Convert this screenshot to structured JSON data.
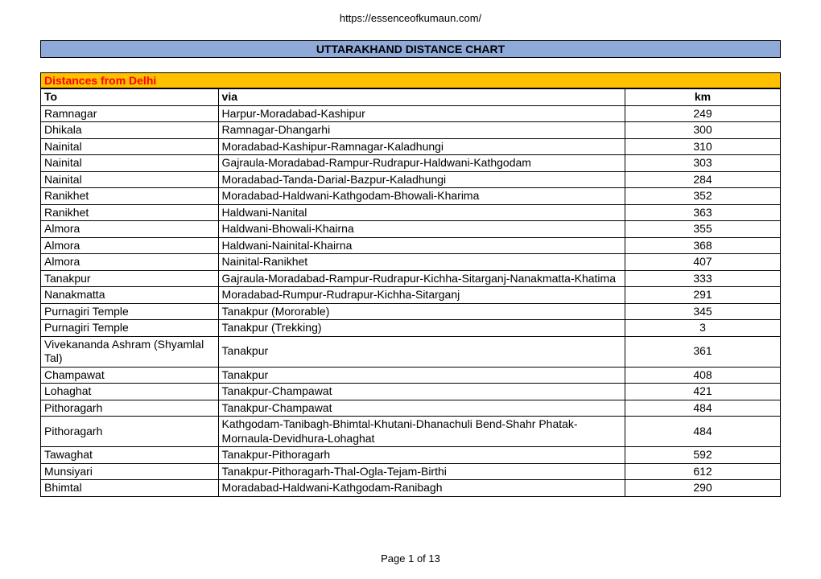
{
  "header_url": "https://essenceofkumaun.com/",
  "title": "UTTARAKHAND DISTANCE CHART",
  "title_bar_bg": "#8fa9d8",
  "section_title": "Distances from Delhi",
  "section_bg": "#ffc000",
  "section_text_color": "#ff0000",
  "columns": {
    "to": "To",
    "via": "via",
    "km": "km"
  },
  "rows": [
    {
      "to": "Ramnagar",
      "via": "Harpur-Moradabad-Kashipur",
      "km": "249"
    },
    {
      "to": "Dhikala",
      "via": "Ramnagar-Dhangarhi",
      "km": "300"
    },
    {
      "to": "Nainital",
      "via": "Moradabad-Kashipur-Ramnagar-Kaladhungi",
      "km": "310"
    },
    {
      "to": "Nainital",
      "via": "Gajraula-Moradabad-Rampur-Rudrapur-Haldwani-Kathgodam",
      "km": "303"
    },
    {
      "to": "Nainital",
      "via": "Moradabad-Tanda-Darial-Bazpur-Kaladhungi",
      "km": "284"
    },
    {
      "to": "Ranikhet",
      "via": "Moradabad-Haldwani-Kathgodam-Bhowali-Kharima",
      "km": "352"
    },
    {
      "to": "Ranikhet",
      "via": "Haldwani-Nanital",
      "km": "363"
    },
    {
      "to": "Almora",
      "via": "Haldwani-Bhowali-Khairna",
      "km": "355"
    },
    {
      "to": "Almora",
      "via": "Haldwani-Nainital-Khairna",
      "km": "368"
    },
    {
      "to": "Almora",
      "via": "Nainital-Ranikhet",
      "km": "407"
    },
    {
      "to": "Tanakpur",
      "via": "Gajraula-Moradabad-Rampur-Rudrapur-Kichha-Sitarganj-Nanakmatta-Khatima",
      "km": "333"
    },
    {
      "to": "Nanakmatta",
      "via": "Moradabad-Rumpur-Rudrapur-Kichha-Sitarganj",
      "km": "291"
    },
    {
      "to": "Purnagiri Temple",
      "via": "Tanakpur (Mororable)",
      "km": "345"
    },
    {
      "to": "Purnagiri Temple",
      "via": "Tanakpur (Trekking)",
      "km": "3"
    },
    {
      "to": "Vivekananda Ashram (Shyamlal Tal)",
      "via": "Tanakpur",
      "km": "361"
    },
    {
      "to": "Champawat",
      "via": "Tanakpur",
      "km": "408"
    },
    {
      "to": "Lohaghat",
      "via": "Tanakpur-Champawat",
      "km": "421"
    },
    {
      "to": "Pithoragarh",
      "via": "Tanakpur-Champawat",
      "km": "484"
    },
    {
      "to": "Pithoragarh",
      "via": "Kathgodam-Tanibagh-Bhimtal-Khutani-Dhanachuli Bend-Shahr Phatak-Mornaula-Devidhura-Lohaghat",
      "km": "484"
    },
    {
      "to": "Tawaghat",
      "via": "Tanakpur-Pithoragarh",
      "km": "592"
    },
    {
      "to": "Munsiyari",
      "via": "Tanakpur-Pithoragarh-Thal-Ogla-Tejam-Birthi",
      "km": "612"
    },
    {
      "to": "Bhimtal",
      "via": "Moradabad-Haldwani-Kathgodam-Ranibagh",
      "km": "290"
    }
  ],
  "footer": "Page 1 of 13"
}
